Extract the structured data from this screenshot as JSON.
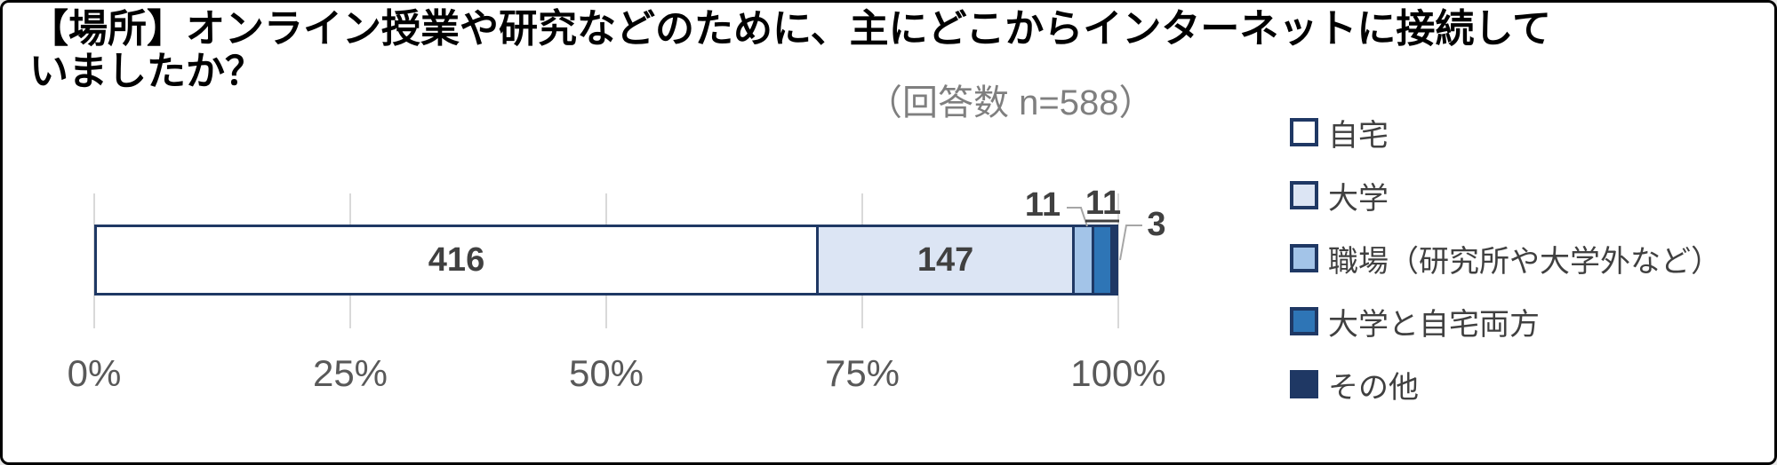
{
  "title": {
    "lines": [
      "【場所】オンライン授業や研究などのために、主にどこからインターネットに接続して",
      "いましたか？"
    ],
    "subtitle": "（回答数 n=588）"
  },
  "chart_data": {
    "type": "bar",
    "orientation": "horizontal",
    "stacked": true,
    "percent_axis": true,
    "title": "【場所】オンライン授業や研究などのために、主にどこからインターネットに接続していましたか？",
    "subtitle": "（回答数 n=588）",
    "n_total": 588,
    "series": [
      {
        "name": "自宅",
        "value": 416,
        "fill": "#ffffff"
      },
      {
        "name": "大学",
        "value": 147,
        "fill": "#dce5f4"
      },
      {
        "name": "職場（研究所や大学外など）",
        "value": 11,
        "fill": "#a3c4e8"
      },
      {
        "name": "大学と自宅両方",
        "value": 11,
        "fill": "#2e75b6"
      },
      {
        "name": "その他",
        "value": 3,
        "fill": "#1f3864"
      }
    ],
    "x_ticks": [
      "0%",
      "25%",
      "50%",
      "75%",
      "100%"
    ],
    "xlim": [
      0,
      100
    ],
    "grid": "vertical-major",
    "legend_position": "right",
    "colors": {
      "segment_border": "#1f3864",
      "gridline": "#d9d9d9",
      "axis_text": "#595959",
      "data_label": "#404040",
      "subtitle_text": "#7f7f7f",
      "leader_line": "#a6a6a6"
    }
  }
}
